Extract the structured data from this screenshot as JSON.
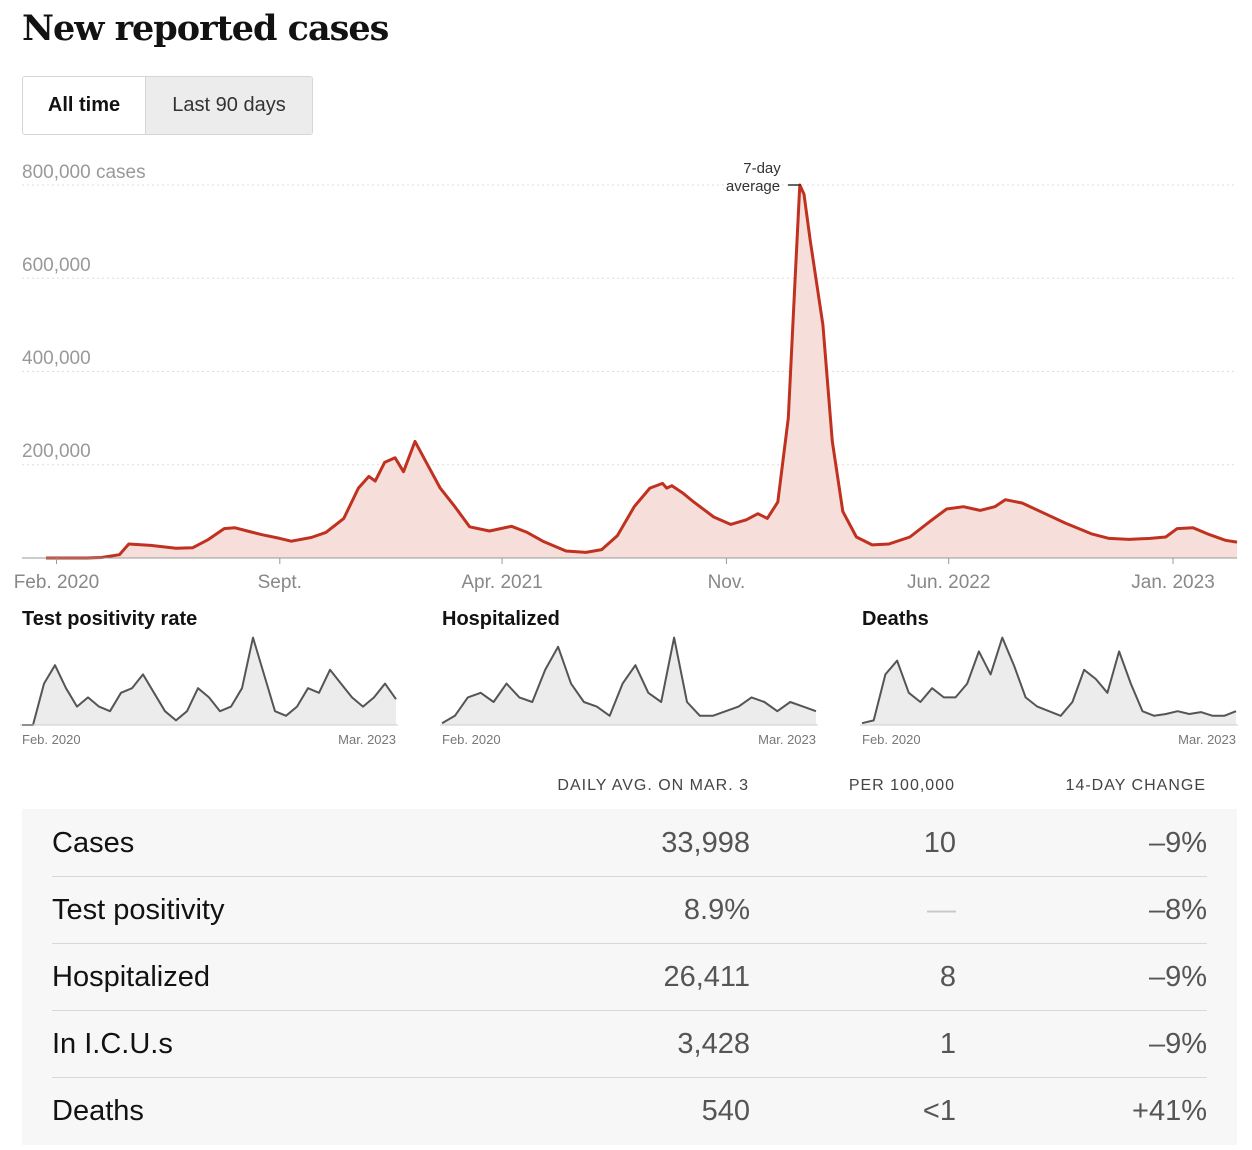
{
  "title": "New reported cases",
  "toggle": {
    "all_time": "All time",
    "last_90": "Last 90 days"
  },
  "chart_data": [
    {
      "type": "area",
      "title": "New reported cases",
      "y_unit_label": "800,000 cases",
      "y_ticks": [
        "200,000",
        "400,000",
        "600,000"
      ],
      "x_ticks": [
        "Feb. 2020",
        "Sept.",
        "Apr. 2021",
        "Nov.",
        "Jun. 2022",
        "Jan. 2023"
      ],
      "annotation": [
        "7-day",
        "average"
      ],
      "ylim": [
        0,
        800000
      ],
      "colors": {
        "line": "#c0311f",
        "fill": "#f6dedb",
        "grid": "#dddddd"
      },
      "series": [
        {
          "x": [
            "2020-01-22",
            "2020-03-01",
            "2020-03-15",
            "2020-04-01",
            "2020-04-10",
            "2020-05-01",
            "2020-05-25",
            "2020-06-10",
            "2020-06-25",
            "2020-07-10",
            "2020-07-20",
            "2020-08-01",
            "2020-08-15",
            "2020-09-01",
            "2020-09-12",
            "2020-10-01",
            "2020-10-15",
            "2020-11-01",
            "2020-11-15",
            "2020-11-25",
            "2020-12-01",
            "2020-12-10",
            "2020-12-20",
            "2020-12-28",
            "2021-01-08",
            "2021-01-20",
            "2021-02-01",
            "2021-02-15",
            "2021-03-01",
            "2021-03-20",
            "2021-04-10",
            "2021-04-25",
            "2021-05-10",
            "2021-06-01",
            "2021-06-20",
            "2021-07-05",
            "2021-07-20",
            "2021-08-05",
            "2021-08-20",
            "2021-09-01",
            "2021-09-05",
            "2021-09-10",
            "2021-09-20",
            "2021-10-01",
            "2021-10-20",
            "2021-11-05",
            "2021-11-20",
            "2021-12-01",
            "2021-12-10",
            "2021-12-20",
            "2021-12-30",
            "2022-01-06",
            "2022-01-10",
            "2022-01-14",
            "2022-01-20",
            "2022-02-01",
            "2022-02-10",
            "2022-02-20",
            "2022-03-05",
            "2022-03-20",
            "2022-04-05",
            "2022-04-25",
            "2022-05-15",
            "2022-05-30",
            "2022-06-15",
            "2022-07-01",
            "2022-07-15",
            "2022-07-25",
            "2022-08-10",
            "2022-09-01",
            "2022-09-20",
            "2022-10-15",
            "2022-11-01",
            "2022-11-20",
            "2022-12-10",
            "2022-12-25",
            "2023-01-05",
            "2023-01-20",
            "2023-02-05",
            "2023-02-20",
            "2023-03-03"
          ],
          "values": [
            0,
            0,
            1000,
            7000,
            30000,
            27000,
            21000,
            22000,
            40000,
            63000,
            65000,
            58000,
            50000,
            42000,
            36000,
            44000,
            55000,
            85000,
            150000,
            175000,
            165000,
            205000,
            215000,
            185000,
            250000,
            200000,
            150000,
            110000,
            67000,
            58000,
            68000,
            55000,
            36000,
            15000,
            12000,
            18000,
            48000,
            110000,
            150000,
            160000,
            150000,
            155000,
            140000,
            120000,
            88000,
            72000,
            82000,
            95000,
            85000,
            120000,
            300000,
            620000,
            800000,
            780000,
            680000,
            500000,
            250000,
            100000,
            45000,
            28000,
            30000,
            45000,
            80000,
            105000,
            110000,
            102000,
            110000,
            125000,
            118000,
            95000,
            75000,
            52000,
            42000,
            40000,
            42000,
            45000,
            63000,
            65000,
            50000,
            38000,
            33998
          ]
        }
      ]
    },
    {
      "type": "area",
      "title": "Test positivity rate",
      "x_ticks": [
        "Feb. 2020",
        "Mar. 2023"
      ],
      "series": [
        {
          "values": [
            0,
            0,
            0.45,
            0.65,
            0.4,
            0.2,
            0.3,
            0.2,
            0.15,
            0.35,
            0.4,
            0.55,
            0.35,
            0.15,
            0.05,
            0.15,
            0.4,
            0.3,
            0.15,
            0.2,
            0.4,
            0.95,
            0.55,
            0.15,
            0.1,
            0.2,
            0.4,
            0.35,
            0.6,
            0.45,
            0.3,
            0.2,
            0.3,
            0.45,
            0.28
          ]
        }
      ]
    },
    {
      "type": "area",
      "title": "Hospitalized",
      "x_ticks": [
        "Feb. 2020",
        "Mar. 2023"
      ],
      "series": [
        {
          "values": [
            0.02,
            0.1,
            0.3,
            0.35,
            0.25,
            0.45,
            0.3,
            0.25,
            0.6,
            0.85,
            0.45,
            0.25,
            0.2,
            0.1,
            0.45,
            0.65,
            0.35,
            0.25,
            0.95,
            0.25,
            0.1,
            0.1,
            0.15,
            0.2,
            0.3,
            0.25,
            0.15,
            0.25,
            0.2,
            0.15
          ]
        }
      ]
    },
    {
      "type": "area",
      "title": "Deaths",
      "x_ticks": [
        "Feb. 2020",
        "Mar. 2023"
      ],
      "series": [
        {
          "values": [
            0.02,
            0.05,
            0.55,
            0.7,
            0.35,
            0.25,
            0.4,
            0.3,
            0.3,
            0.45,
            0.8,
            0.55,
            0.95,
            0.65,
            0.3,
            0.2,
            0.15,
            0.1,
            0.25,
            0.6,
            0.5,
            0.35,
            0.8,
            0.45,
            0.15,
            0.1,
            0.12,
            0.15,
            0.12,
            0.14,
            0.1,
            0.1,
            0.15
          ]
        }
      ]
    }
  ],
  "table": {
    "headers": [
      "DAILY AVG. ON MAR. 3",
      "PER 100,000",
      "14-DAY CHANGE"
    ],
    "rows": [
      {
        "label": "Cases",
        "avg": "33,998",
        "per": "10",
        "change": "–9%"
      },
      {
        "label": "Test positivity",
        "avg": "8.9%",
        "per": "—",
        "change": "–8%"
      },
      {
        "label": "Hospitalized",
        "avg": "26,411",
        "per": "8",
        "change": "–9%"
      },
      {
        "label": "In I.C.U.s",
        "avg": "3,428",
        "per": "1",
        "change": "–9%"
      },
      {
        "label": "Deaths",
        "avg": "540",
        "per": "<1",
        "change": "+41%"
      }
    ]
  }
}
